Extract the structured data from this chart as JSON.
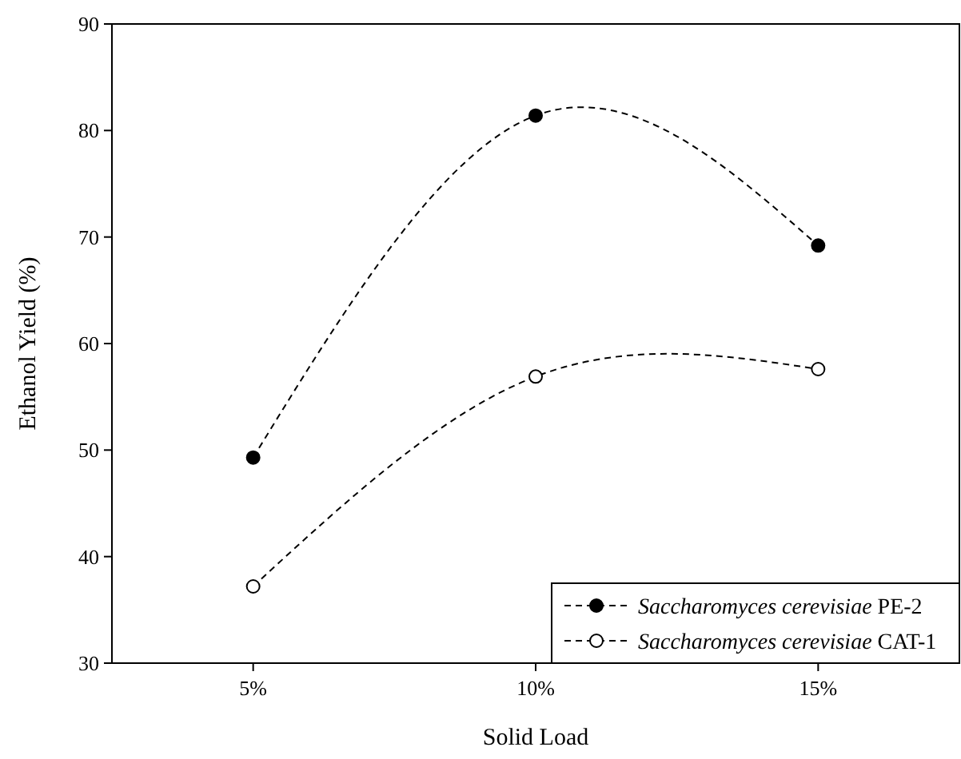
{
  "chart_data": {
    "type": "line",
    "xlabel": "Solid Load",
    "ylabel": "Ethanol Yield (%)",
    "categories": [
      "5%",
      "10%",
      "15%"
    ],
    "series": [
      {
        "name": "Saccharomyces cerevisiae PE-2",
        "color": "#000000",
        "values": [
          49.3,
          81.4,
          69.2
        ]
      },
      {
        "name": "Saccharomyces cerevisiae CAT-1",
        "color": "#000000",
        "values": [
          37.2,
          56.9,
          57.6
        ]
      }
    ],
    "ylim": [
      30,
      90
    ],
    "yticks": [
      30,
      40,
      50,
      60,
      70,
      80,
      90
    ],
    "marker": "circle",
    "line_style": "dashed",
    "legend": "bottom right",
    "grid": false
  }
}
